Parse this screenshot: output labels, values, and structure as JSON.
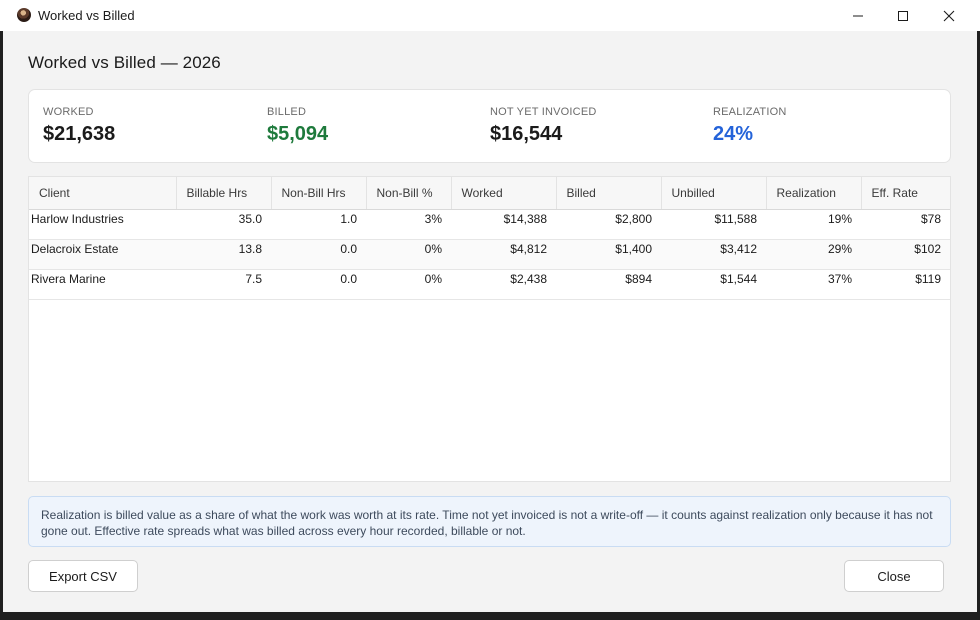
{
  "window": {
    "title": "Worked vs Billed",
    "icon": "app-avatar-icon"
  },
  "page": {
    "title": "Worked vs Billed — 2026"
  },
  "summary": {
    "worked": {
      "label": "WORKED",
      "value": "$21,638"
    },
    "billed": {
      "label": "BILLED",
      "value": "$5,094",
      "color": "#1e7a3c"
    },
    "not_invoiced": {
      "label": "NOT YET INVOICED",
      "value": "$16,544"
    },
    "realization": {
      "label": "REALIZATION",
      "value": "24%",
      "color": "#2463d9"
    }
  },
  "table": {
    "columns": [
      "Client",
      "Billable Hrs",
      "Non-Bill Hrs",
      "Non-Bill %",
      "Worked",
      "Billed",
      "Unbilled",
      "Realization",
      "Eff. Rate"
    ],
    "rows": [
      [
        "Harlow Industries",
        "35.0",
        "1.0",
        "3%",
        "$14,388",
        "$2,800",
        "$11,588",
        "19%",
        "$78"
      ],
      [
        "Delacroix Estate",
        "13.8",
        "0.0",
        "0%",
        "$4,812",
        "$1,400",
        "$3,412",
        "29%",
        "$102"
      ],
      [
        "Rivera Marine",
        "7.5",
        "0.0",
        "0%",
        "$2,438",
        "$894",
        "$1,544",
        "37%",
        "$119"
      ]
    ]
  },
  "note": {
    "text": "Realization is billed value as a share of what the work was worth at its rate. Time not yet invoiced is not a write-off — it counts against realization only because it has not gone out. Effective rate spreads what was billed across every hour recorded, billable or not."
  },
  "buttons": {
    "export": "Export CSV",
    "close": "Close"
  }
}
